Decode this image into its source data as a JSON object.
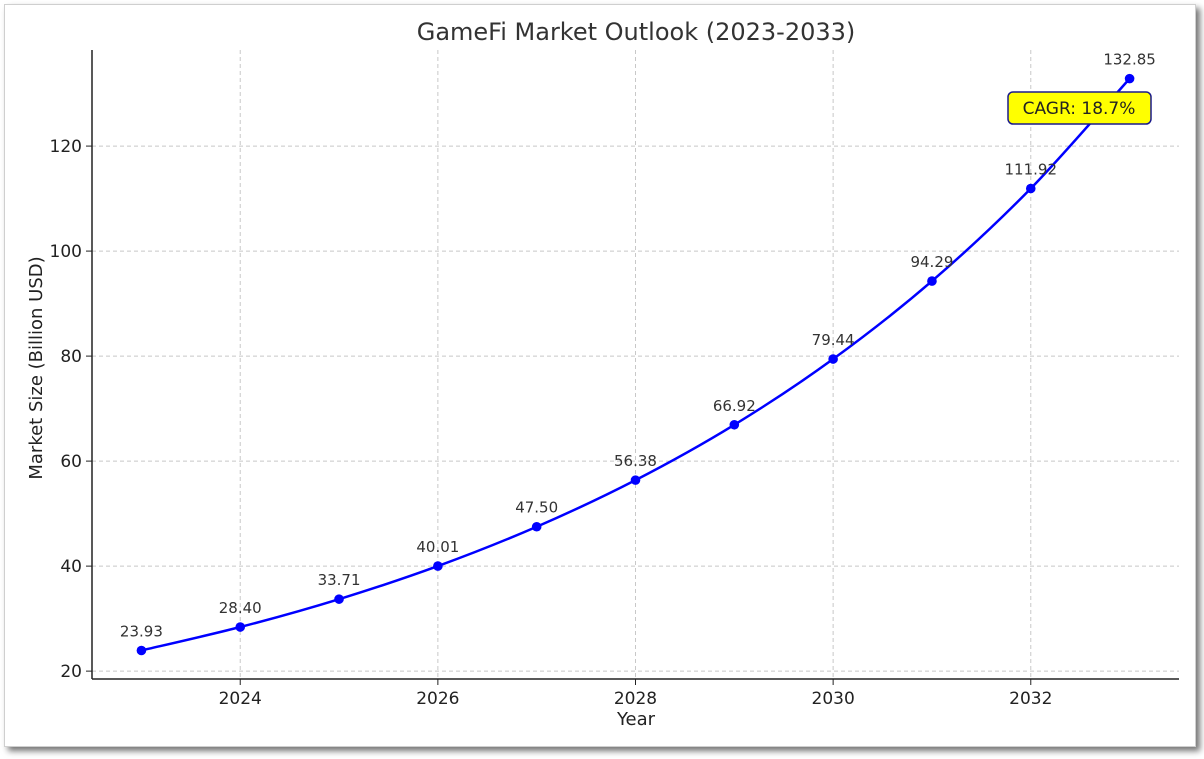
{
  "chart_data": {
    "type": "line",
    "title": "GameFi Market Outlook (2023-2033)",
    "xlabel": "Year",
    "ylabel": "Market Size (Billion USD)",
    "x": [
      2023,
      2024,
      2025,
      2026,
      2027,
      2028,
      2029,
      2030,
      2031,
      2032,
      2033
    ],
    "series": [
      {
        "values": [
          23.93,
          28.4,
          33.71,
          40.01,
          47.5,
          56.38,
          66.92,
          79.44,
          94.29,
          111.92,
          132.85
        ],
        "data_labels": [
          "23.93",
          "28.40",
          "33.71",
          "40.01",
          "47.50",
          "56.38",
          "66.92",
          "79.44",
          "94.29",
          "111.92",
          "132.85"
        ],
        "color": "#0000ff"
      }
    ],
    "xticks": [
      "2024",
      "2026",
      "2028",
      "2030",
      "2032"
    ],
    "yticks": [
      "20",
      "40",
      "60",
      "80",
      "100",
      "120"
    ],
    "xlim": [
      2022.5,
      2033.5
    ],
    "ylim": [
      18.5,
      138.3
    ],
    "grid": true,
    "annotation": {
      "text": "CAGR: 18.7%",
      "background": "#ffff00",
      "border": "#1a1a8c"
    }
  }
}
